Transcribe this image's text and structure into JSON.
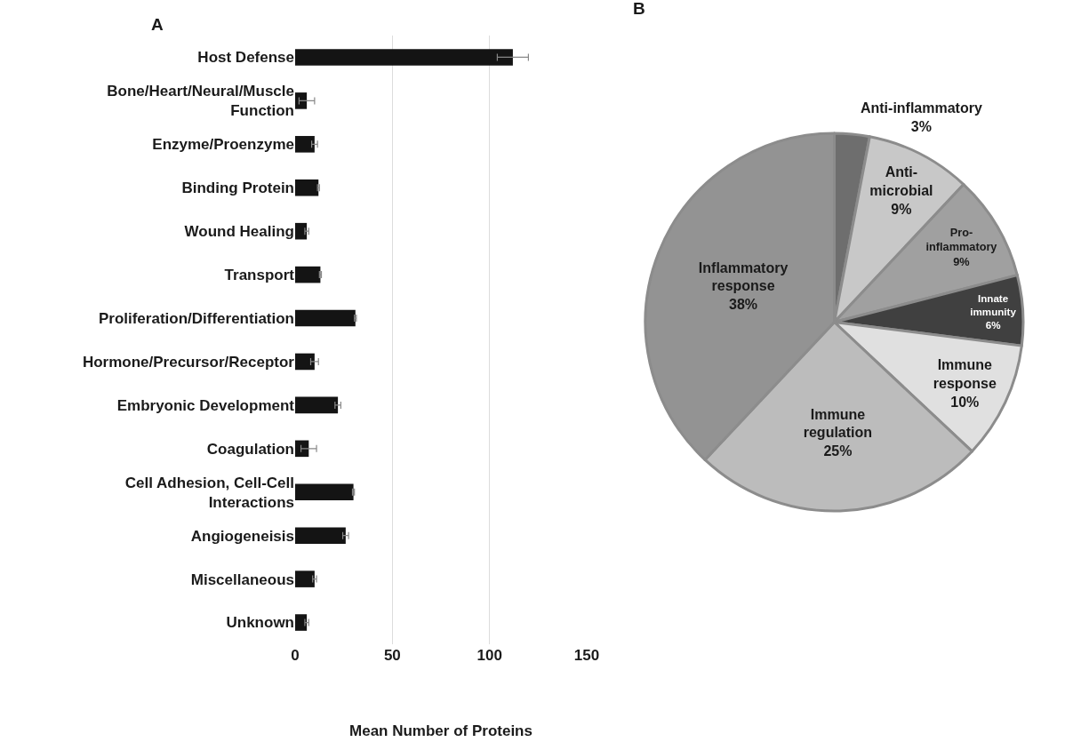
{
  "chart_data": [
    {
      "type": "bar",
      "title": "A",
      "orientation": "horizontal",
      "xlabel": "Mean Number of Proteins",
      "categories": [
        "Host Defense",
        "Bone/Heart/Neural/Muscle Function",
        "Enzyme/Proenzyme",
        "Binding Protein",
        "Wound Healing",
        "Transport",
        "Proliferation/Differentiation",
        "Hormone/Precursor/Receptor",
        "Embryonic Development",
        "Coagulation",
        "Cell Adhesion, Cell-Cell Interactions",
        "Angiogeneisis",
        "Miscellaneous",
        "Unknown"
      ],
      "values": [
        112,
        6,
        10,
        12,
        6,
        13,
        31,
        10,
        22,
        7,
        30,
        26,
        10,
        6
      ],
      "errors": [
        8,
        4,
        1.5,
        0.5,
        1,
        0.5,
        0.5,
        2,
        1.5,
        4,
        0.5,
        1.5,
        1,
        1
      ],
      "color": "#141414",
      "xlim": [
        0,
        150
      ],
      "xticks": [
        0,
        50,
        100,
        150
      ],
      "grid": "x",
      "legend": false
    },
    {
      "type": "pie",
      "title": "B",
      "categories": [
        "Anti-inflammatory",
        "Anti-microbial",
        "Pro-inflammatory",
        "Innate immunity",
        "Immune response",
        "Immune regulation",
        "Inflammatory response"
      ],
      "values": [
        3,
        9,
        9,
        6,
        10,
        25,
        38
      ],
      "colors": [
        "#6e6e6e",
        "#c8c8c8",
        "#a0a0a0",
        "#404040",
        "#e0e0e0",
        "#bcbcbc",
        "#939393"
      ],
      "value_labels": [
        "3%",
        "9%",
        "9%",
        "6%",
        "10%",
        "25%",
        "38%"
      ],
      "legend": false
    }
  ]
}
